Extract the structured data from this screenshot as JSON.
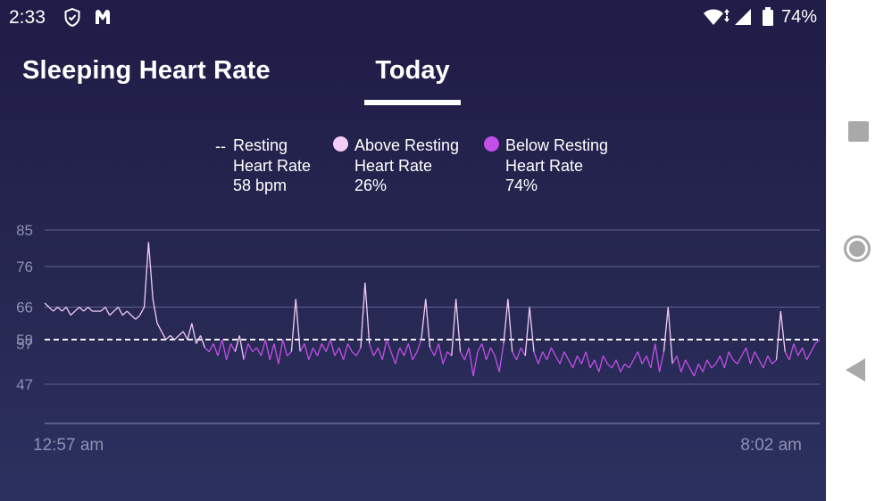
{
  "status_bar": {
    "time": "2:33",
    "battery": "74%"
  },
  "header": {
    "title": "Sleeping Heart Rate",
    "tab": "Today"
  },
  "legend": {
    "resting": {
      "line1": "Resting",
      "line2": "Heart Rate",
      "value": "58 bpm",
      "marker": "--"
    },
    "above": {
      "line1": "Above Resting",
      "line2": "Heart Rate",
      "value": "26%",
      "color": "#f3cdf8"
    },
    "below": {
      "line1": "Below Resting",
      "line2": "Heart Rate",
      "value": "74%",
      "color": "#c34ee8"
    }
  },
  "chart_data": {
    "type": "line",
    "y_ticks": [
      85,
      76,
      66,
      58,
      57,
      47
    ],
    "x_labels": [
      "12:57 am",
      "8:02 am"
    ],
    "resting_bpm": 58,
    "ylim": [
      37,
      85
    ],
    "series": [
      {
        "name": "Above Resting",
        "color": "#f3cdf8"
      },
      {
        "name": "Below Resting",
        "color": "#c34ee8"
      }
    ],
    "points": [
      [
        0,
        67
      ],
      [
        1,
        66
      ],
      [
        2,
        65
      ],
      [
        3,
        66
      ],
      [
        4,
        65
      ],
      [
        5,
        66
      ],
      [
        6,
        64
      ],
      [
        7,
        65
      ],
      [
        8,
        66
      ],
      [
        9,
        65
      ],
      [
        10,
        66
      ],
      [
        11,
        65
      ],
      [
        12,
        65
      ],
      [
        13,
        65
      ],
      [
        14,
        66
      ],
      [
        15,
        64
      ],
      [
        16,
        65
      ],
      [
        17,
        66
      ],
      [
        18,
        64
      ],
      [
        19,
        65
      ],
      [
        20,
        64
      ],
      [
        21,
        63
      ],
      [
        22,
        64
      ],
      [
        23,
        66
      ],
      [
        24,
        82
      ],
      [
        25,
        68
      ],
      [
        26,
        62
      ],
      [
        27,
        60
      ],
      [
        28,
        58
      ],
      [
        29,
        59
      ],
      [
        30,
        58
      ],
      [
        31,
        59
      ],
      [
        32,
        60
      ],
      [
        33,
        58
      ],
      [
        34,
        62
      ],
      [
        35,
        57
      ],
      [
        36,
        59
      ],
      [
        37,
        56
      ],
      [
        38,
        55
      ],
      [
        39,
        57
      ],
      [
        40,
        54
      ],
      [
        41,
        58
      ],
      [
        42,
        53
      ],
      [
        43,
        57
      ],
      [
        44,
        55
      ],
      [
        45,
        59
      ],
      [
        46,
        53
      ],
      [
        47,
        57
      ],
      [
        48,
        55
      ],
      [
        49,
        56
      ],
      [
        50,
        54
      ],
      [
        51,
        58
      ],
      [
        52,
        53
      ],
      [
        53,
        57
      ],
      [
        54,
        52
      ],
      [
        55,
        58
      ],
      [
        56,
        54
      ],
      [
        57,
        55
      ],
      [
        58,
        68
      ],
      [
        59,
        55
      ],
      [
        60,
        57
      ],
      [
        61,
        53
      ],
      [
        62,
        56
      ],
      [
        63,
        54
      ],
      [
        64,
        57
      ],
      [
        65,
        55
      ],
      [
        66,
        58
      ],
      [
        67,
        54
      ],
      [
        68,
        56
      ],
      [
        69,
        53
      ],
      [
        70,
        57
      ],
      [
        71,
        55
      ],
      [
        72,
        54
      ],
      [
        73,
        56
      ],
      [
        74,
        72
      ],
      [
        75,
        57
      ],
      [
        76,
        54
      ],
      [
        77,
        56
      ],
      [
        78,
        53
      ],
      [
        79,
        58
      ],
      [
        80,
        55
      ],
      [
        81,
        52
      ],
      [
        82,
        56
      ],
      [
        83,
        54
      ],
      [
        84,
        57
      ],
      [
        85,
        53
      ],
      [
        86,
        55
      ],
      [
        87,
        58
      ],
      [
        88,
        68
      ],
      [
        89,
        56
      ],
      [
        90,
        54
      ],
      [
        91,
        57
      ],
      [
        92,
        52
      ],
      [
        93,
        55
      ],
      [
        94,
        54
      ],
      [
        95,
        68
      ],
      [
        96,
        55
      ],
      [
        97,
        53
      ],
      [
        98,
        56
      ],
      [
        99,
        49
      ],
      [
        100,
        55
      ],
      [
        101,
        57
      ],
      [
        102,
        53
      ],
      [
        103,
        56
      ],
      [
        104,
        54
      ],
      [
        105,
        50
      ],
      [
        106,
        57
      ],
      [
        107,
        68
      ],
      [
        108,
        55
      ],
      [
        109,
        53
      ],
      [
        110,
        56
      ],
      [
        111,
        54
      ],
      [
        112,
        66
      ],
      [
        113,
        55
      ],
      [
        114,
        52
      ],
      [
        115,
        55
      ],
      [
        116,
        53
      ],
      [
        117,
        56
      ],
      [
        118,
        54
      ],
      [
        119,
        52
      ],
      [
        120,
        55
      ],
      [
        121,
        53
      ],
      [
        122,
        51
      ],
      [
        123,
        54
      ],
      [
        124,
        52
      ],
      [
        125,
        55
      ],
      [
        126,
        51
      ],
      [
        127,
        53
      ],
      [
        128,
        50
      ],
      [
        129,
        54
      ],
      [
        130,
        52
      ],
      [
        131,
        51
      ],
      [
        132,
        53
      ],
      [
        133,
        50
      ],
      [
        134,
        52
      ],
      [
        135,
        51
      ],
      [
        136,
        53
      ],
      [
        137,
        55
      ],
      [
        138,
        52
      ],
      [
        139,
        54
      ],
      [
        140,
        51
      ],
      [
        141,
        57
      ],
      [
        142,
        50
      ],
      [
        143,
        55
      ],
      [
        144,
        66
      ],
      [
        145,
        52
      ],
      [
        146,
        54
      ],
      [
        147,
        50
      ],
      [
        148,
        53
      ],
      [
        149,
        51
      ],
      [
        150,
        49
      ],
      [
        151,
        52
      ],
      [
        152,
        50
      ],
      [
        153,
        53
      ],
      [
        154,
        51
      ],
      [
        155,
        52
      ],
      [
        156,
        54
      ],
      [
        157,
        51
      ],
      [
        158,
        55
      ],
      [
        159,
        53
      ],
      [
        160,
        52
      ],
      [
        161,
        54
      ],
      [
        162,
        56
      ],
      [
        163,
        52
      ],
      [
        164,
        55
      ],
      [
        165,
        53
      ],
      [
        166,
        51
      ],
      [
        167,
        54
      ],
      [
        168,
        52
      ],
      [
        169,
        53
      ],
      [
        170,
        65
      ],
      [
        171,
        55
      ],
      [
        172,
        53
      ],
      [
        173,
        57
      ],
      [
        174,
        54
      ],
      [
        175,
        56
      ],
      [
        176,
        53
      ],
      [
        177,
        55
      ],
      [
        178,
        57
      ],
      [
        179,
        58
      ]
    ]
  }
}
